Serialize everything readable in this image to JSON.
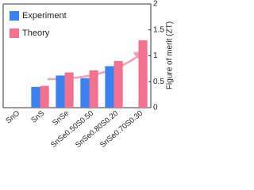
{
  "chart_data": {
    "type": "bar",
    "y_axis_label": "Figure of merit (ZT)",
    "categories": [
      "SnO",
      "SnS",
      "SnSe",
      "SnSe0.50S0.50",
      "SnSe0.80S0.20",
      "SnSe0.70S0.30"
    ],
    "series": [
      {
        "name": "Experiment",
        "color": "#3b82f0",
        "values": [
          null,
          0.4,
          0.62,
          0.57,
          0.8,
          null
        ]
      },
      {
        "name": "Theory",
        "color": "#f2718f",
        "values": [
          null,
          0.42,
          0.68,
          0.72,
          0.9,
          1.3
        ]
      }
    ],
    "ylim": [
      0,
      2
    ],
    "yticks": [
      0,
      0.5,
      1,
      1.5,
      2
    ],
    "legend": "upper-left"
  }
}
